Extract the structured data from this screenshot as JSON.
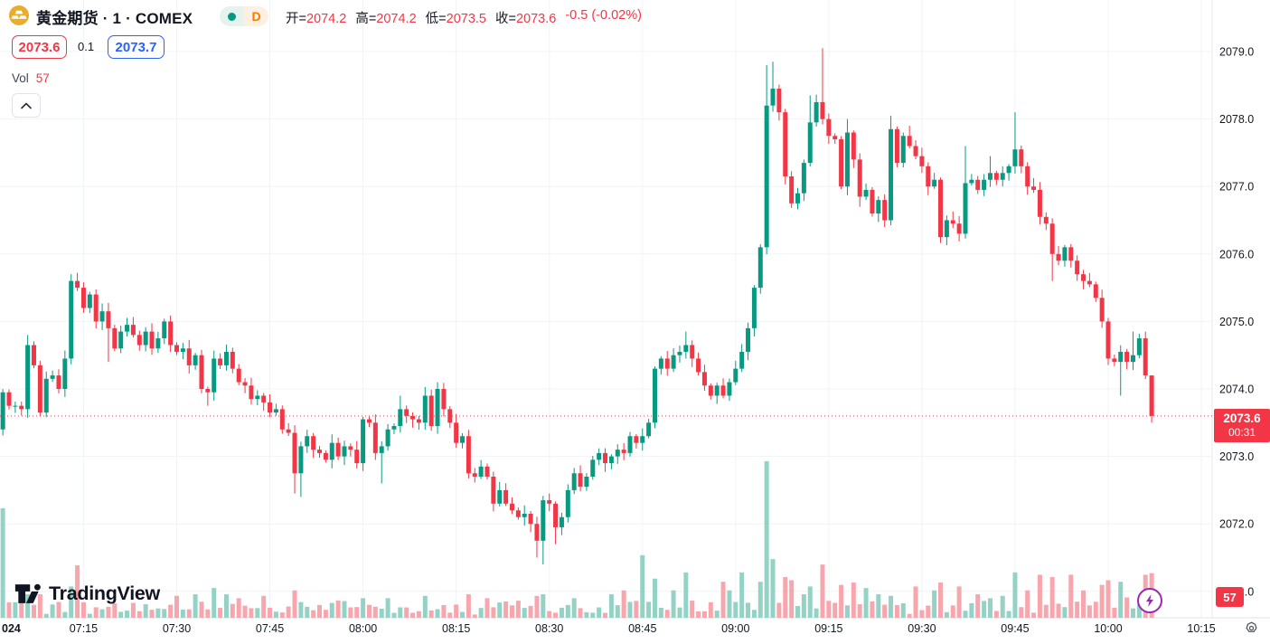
{
  "header": {
    "symbol_title": "黄金期货 · 1 · COMEX",
    "interval_badge": {
      "dot_icon": "session-dot",
      "label": "D"
    },
    "ohlc": {
      "open_label": "开=",
      "open": "2074.2",
      "high_label": "高=",
      "high": "2074.2",
      "low_label": "低=",
      "low": "2073.5",
      "close_label": "收=",
      "close": "2073.6",
      "change": "-0.5 (-0.02%)"
    },
    "sell_price": "2073.6",
    "spread": "0.1",
    "buy_price": "2073.7",
    "vol_label": "Vol",
    "vol_value": "57"
  },
  "footer": {
    "brand": "TradingView"
  },
  "price_scale": {
    "labels": [
      "2079.0",
      "2078.0",
      "2077.0",
      "2076.0",
      "2075.0",
      "2074.0",
      "2073.0",
      "2072.0",
      "2071.0"
    ],
    "current_price": "2073.6",
    "countdown": "00:31",
    "volume_badge": "57"
  },
  "time_scale": {
    "edge_label": "024",
    "labels": [
      "07:15",
      "07:30",
      "07:45",
      "08:00",
      "08:15",
      "08:30",
      "08:45",
      "09:00",
      "09:15",
      "09:30",
      "09:45",
      "10:00",
      "10:15"
    ]
  },
  "chart_data": {
    "type": "candlestick+volume",
    "title": "黄金期货 1分钟 COMEX",
    "interval_minutes": 1,
    "start_time": "07:02",
    "end_time": "10:07",
    "price_axis_range": [
      2071.0,
      2079.0
    ],
    "grid": true,
    "first_open": 2073.4,
    "closes": [
      2073.95,
      2073.75,
      2073.75,
      2073.7,
      2074.65,
      2074.35,
      2073.65,
      2074.15,
      2074.2,
      2074.0,
      2074.45,
      2075.6,
      2075.5,
      2075.2,
      2075.4,
      2075.0,
      2075.15,
      2074.9,
      2074.6,
      2074.85,
      2074.95,
      2074.8,
      2074.65,
      2074.85,
      2074.6,
      2074.75,
      2075.0,
      2074.65,
      2074.55,
      2074.6,
      2074.35,
      2074.5,
      2074.0,
      2073.95,
      2074.45,
      2074.35,
      2074.55,
      2074.3,
      2074.1,
      2074.05,
      2073.85,
      2073.9,
      2073.8,
      2073.65,
      2073.7,
      2073.4,
      2073.35,
      2072.75,
      2073.15,
      2073.3,
      2073.1,
      2073.05,
      2072.95,
      2073.2,
      2073.0,
      2073.15,
      2073.1,
      2072.9,
      2073.55,
      2073.5,
      2073.05,
      2073.15,
      2073.4,
      2073.45,
      2073.7,
      2073.6,
      2073.55,
      2073.5,
      2073.9,
      2073.45,
      2074.0,
      2073.7,
      2073.5,
      2073.2,
      2073.3,
      2072.75,
      2072.7,
      2072.85,
      2072.7,
      2072.3,
      2072.5,
      2072.3,
      2072.2,
      2072.1,
      2072.15,
      2072.0,
      2071.75,
      2072.35,
      2072.3,
      2071.95,
      2072.1,
      2072.5,
      2072.75,
      2072.55,
      2072.7,
      2072.95,
      2073.05,
      2072.9,
      2073.0,
      2073.1,
      2073.05,
      2073.3,
      2073.2,
      2073.3,
      2073.5,
      2074.3,
      2074.45,
      2074.3,
      2074.5,
      2074.55,
      2074.65,
      2074.45,
      2074.25,
      2074.05,
      2073.9,
      2074.05,
      2073.9,
      2074.1,
      2074.3,
      2074.55,
      2074.9,
      2075.5,
      2076.1,
      2078.2,
      2078.45,
      2078.1,
      2077.15,
      2076.75,
      2076.9,
      2077.35,
      2077.95,
      2078.25,
      2078.0,
      2077.75,
      2077.7,
      2077.0,
      2077.8,
      2077.4,
      2076.85,
      2076.95,
      2076.6,
      2076.8,
      2076.5,
      2077.85,
      2077.35,
      2077.75,
      2077.6,
      2077.45,
      2077.3,
      2077.0,
      2077.1,
      2076.25,
      2076.5,
      2076.45,
      2076.3,
      2077.05,
      2077.1,
      2076.95,
      2077.1,
      2077.2,
      2077.1,
      2077.2,
      2077.3,
      2077.55,
      2077.3,
      2077.0,
      2076.95,
      2076.55,
      2076.45,
      2076.0,
      2075.9,
      2076.1,
      2075.9,
      2075.7,
      2075.6,
      2075.55,
      2075.35,
      2075.0,
      2074.45,
      2074.4,
      2074.55,
      2074.4,
      2074.5,
      2074.75,
      2074.2,
      2073.6
    ],
    "wick_overrides": {
      "6": {
        "h": 2074.8
      },
      "13": {
        "h": 2075.7
      },
      "19": {
        "l": 2074.4
      },
      "35": {
        "l": 2073.75
      },
      "49": {
        "l": 2072.45
      },
      "50": {
        "l": 2072.4
      },
      "63": {
        "l": 2072.6
      },
      "66": {
        "h": 2073.9
      },
      "72": {
        "h": 2074.1
      },
      "88": {
        "l": 2071.5
      },
      "89": {
        "l": 2071.4
      },
      "91": {
        "l": 2071.7
      },
      "112": {
        "h": 2074.85
      },
      "125": {
        "h": 2078.8
      },
      "126": {
        "h": 2078.85
      },
      "132": {
        "h": 2078.35
      },
      "134": {
        "h": 2079.05
      },
      "138": {
        "h": 2078.0
      },
      "140": {
        "l": 2076.7
      },
      "144": {
        "l": 2076.4
      },
      "145": {
        "h": 2078.05
      },
      "148": {
        "h": 2077.9
      },
      "157": {
        "h": 2077.6
      },
      "161": {
        "h": 2077.45
      },
      "165": {
        "h": 2078.1
      },
      "171": {
        "l": 2075.6
      },
      "182": {
        "l": 2073.9
      },
      "184": {
        "h": 2074.85
      },
      "187": {
        "h": 2074.2,
        "l": 2073.5
      }
    },
    "volume_max": 200,
    "volume_overrides": {
      "2": 140,
      "5": 38,
      "6": 30,
      "8": 30,
      "13": 40,
      "14": 67,
      "30": 28,
      "33": 30,
      "36": 38,
      "38": 30,
      "40": 25,
      "44": 28,
      "49": 35,
      "56": 22,
      "60": 25,
      "64": 25,
      "70": 28,
      "77": 30,
      "80": 25,
      "88": 28,
      "89": 30,
      "94": 25,
      "100": 30,
      "102": 35,
      "105": 80,
      "107": 50,
      "110": 35,
      "112": 58,
      "118": 46,
      "119": 35,
      "121": 58,
      "124": 46,
      "125": 200,
      "126": 75,
      "128": 52,
      "129": 48,
      "131": 30,
      "132": 40,
      "134": 68,
      "137": 42,
      "139": 45,
      "141": 38,
      "143": 30,
      "145": 28,
      "149": 40,
      "152": 35,
      "153": 45,
      "156": 40,
      "159": 30,
      "161": 25,
      "163": 28,
      "165": 58,
      "167": 35,
      "169": 55,
      "171": 52,
      "174": 55,
      "176": 35,
      "179": 42,
      "180": 48,
      "182": 46,
      "183": 26,
      "184": 12,
      "185": 17,
      "186": 55,
      "187": 57
    },
    "last_close": 2073.6,
    "last_volume": 57,
    "colors": {
      "up": "#089981",
      "down": "#f23645",
      "vol_up": "#93d2c4",
      "vol_down": "#f7a6ad",
      "grid": "#f0f3fa",
      "axis_text": "#131722",
      "current_line": "#f23645",
      "accent_blue": "#2962ff",
      "flash_purple": "#9c27b0",
      "badge_orange": "#f57c00"
    }
  }
}
